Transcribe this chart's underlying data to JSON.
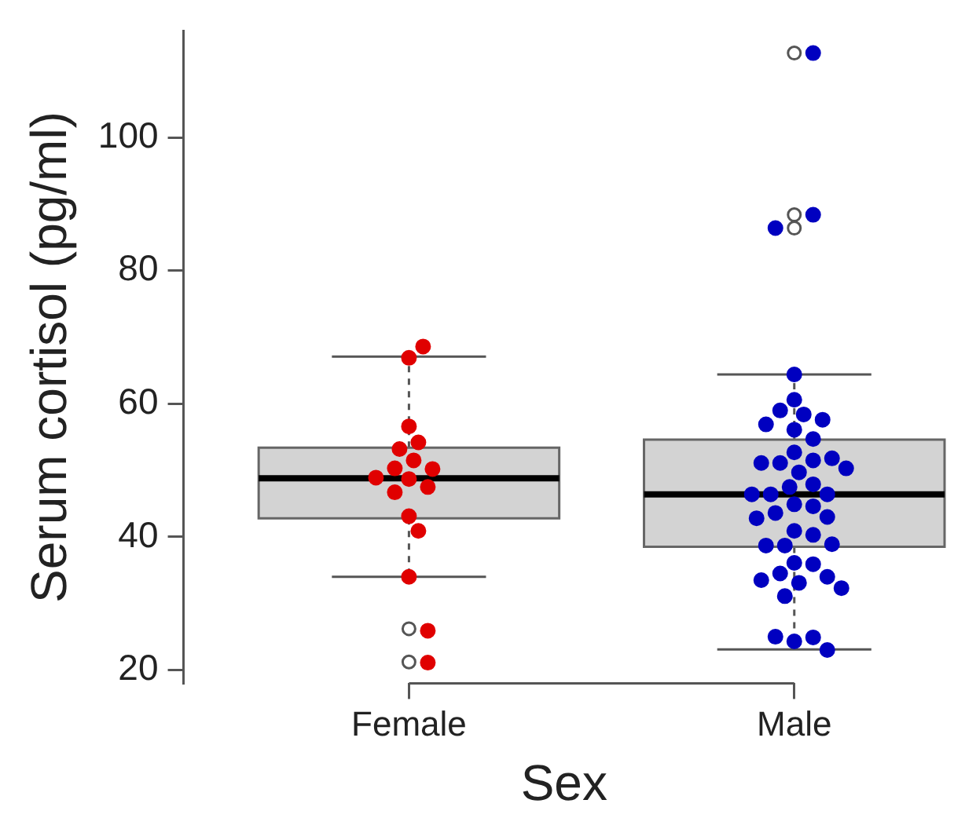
{
  "chart_data": {
    "type": "box",
    "xlabel": "Sex",
    "ylabel": "Serum cortisol (pg/ml)",
    "categories": [
      "Female",
      "Male"
    ],
    "boxes": [
      {
        "low": 34,
        "q1": 42.8,
        "median": 48.8,
        "q3": 53.4,
        "high": 67.1,
        "outliers": [
          26.2,
          21.2
        ]
      },
      {
        "low": 23.1,
        "q1": 38.5,
        "median": 46.4,
        "q3": 54.6,
        "high": 64.4,
        "outliers": [
          112.7,
          88.4,
          86.4
        ]
      }
    ],
    "series": [
      {
        "type": "scatter",
        "color": "#e00000",
        "x": [
          "Female",
          "Female",
          "Female",
          "Female",
          "Female",
          "Female",
          "Female",
          "Female",
          "Female",
          "Female",
          "Female",
          "Female",
          "Female",
          "Female",
          "Female",
          "Female",
          "Female"
        ],
        "values": [
          66.9,
          68.6,
          56.6,
          54.2,
          53.2,
          51.5,
          50.3,
          50.2,
          48.7,
          48.9,
          47.5,
          46.7,
          43.1,
          40.9,
          34,
          25.9,
          21.1
        ]
      },
      {
        "type": "scatter",
        "color": "#0000c0",
        "x": [
          "Male",
          "Male",
          "Male",
          "Male",
          "Male",
          "Male",
          "Male",
          "Male",
          "Male",
          "Male",
          "Male",
          "Male",
          "Male",
          "Male",
          "Male",
          "Male",
          "Male",
          "Male",
          "Male",
          "Male",
          "Male",
          "Male",
          "Male",
          "Male",
          "Male",
          "Male",
          "Male",
          "Male",
          "Male",
          "Male",
          "Male",
          "Male",
          "Male",
          "Male",
          "Male",
          "Male",
          "Male",
          "Male",
          "Male",
          "Male",
          "Male",
          "Male",
          "Male",
          "Male",
          "Male"
        ],
        "values": [
          112.7,
          88.4,
          86.4,
          64.4,
          60.6,
          58.4,
          59.0,
          57.6,
          56.9,
          56.1,
          54.7,
          52.7,
          51.5,
          51.1,
          51.1,
          51.8,
          50.3,
          49.7,
          47.5,
          47.9,
          46.4,
          46.4,
          46.4,
          44.9,
          44.6,
          43.6,
          43.0,
          42.8,
          40.9,
          40.3,
          38.7,
          38.7,
          38.9,
          36.1,
          35.9,
          34.5,
          33.1,
          34.0,
          33.5,
          32.3,
          31.1,
          24.3,
          24.9,
          25.0,
          23.0
        ]
      }
    ],
    "ylim": [
      18,
      116
    ],
    "yticks": [
      20,
      40,
      60,
      80,
      100
    ],
    "grid": false,
    "legend": false,
    "marker": "circle"
  }
}
